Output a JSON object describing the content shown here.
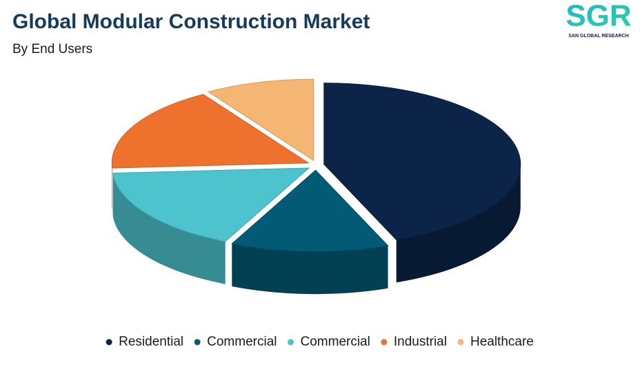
{
  "chart_data": {
    "type": "pie3d",
    "title": "Global Modular Construction Market",
    "subtitle": "By End Users",
    "series": [
      {
        "name": "Residential",
        "color": "#0b2447",
        "values": [
          44
        ]
      },
      {
        "name": "Commercial",
        "color": "#035a74",
        "values": [
          13
        ]
      },
      {
        "name": "Commercial",
        "color": "#4cc3cd",
        "values": [
          17
        ]
      },
      {
        "name": "Industrial",
        "color": "#ee722e",
        "values": [
          17
        ]
      },
      {
        "name": "Healthcare",
        "color": "#f6b673",
        "values": [
          9
        ]
      }
    ]
  },
  "logo": {
    "text": "SGR",
    "tagline": "SAN GLOBAL RESEARCH"
  }
}
